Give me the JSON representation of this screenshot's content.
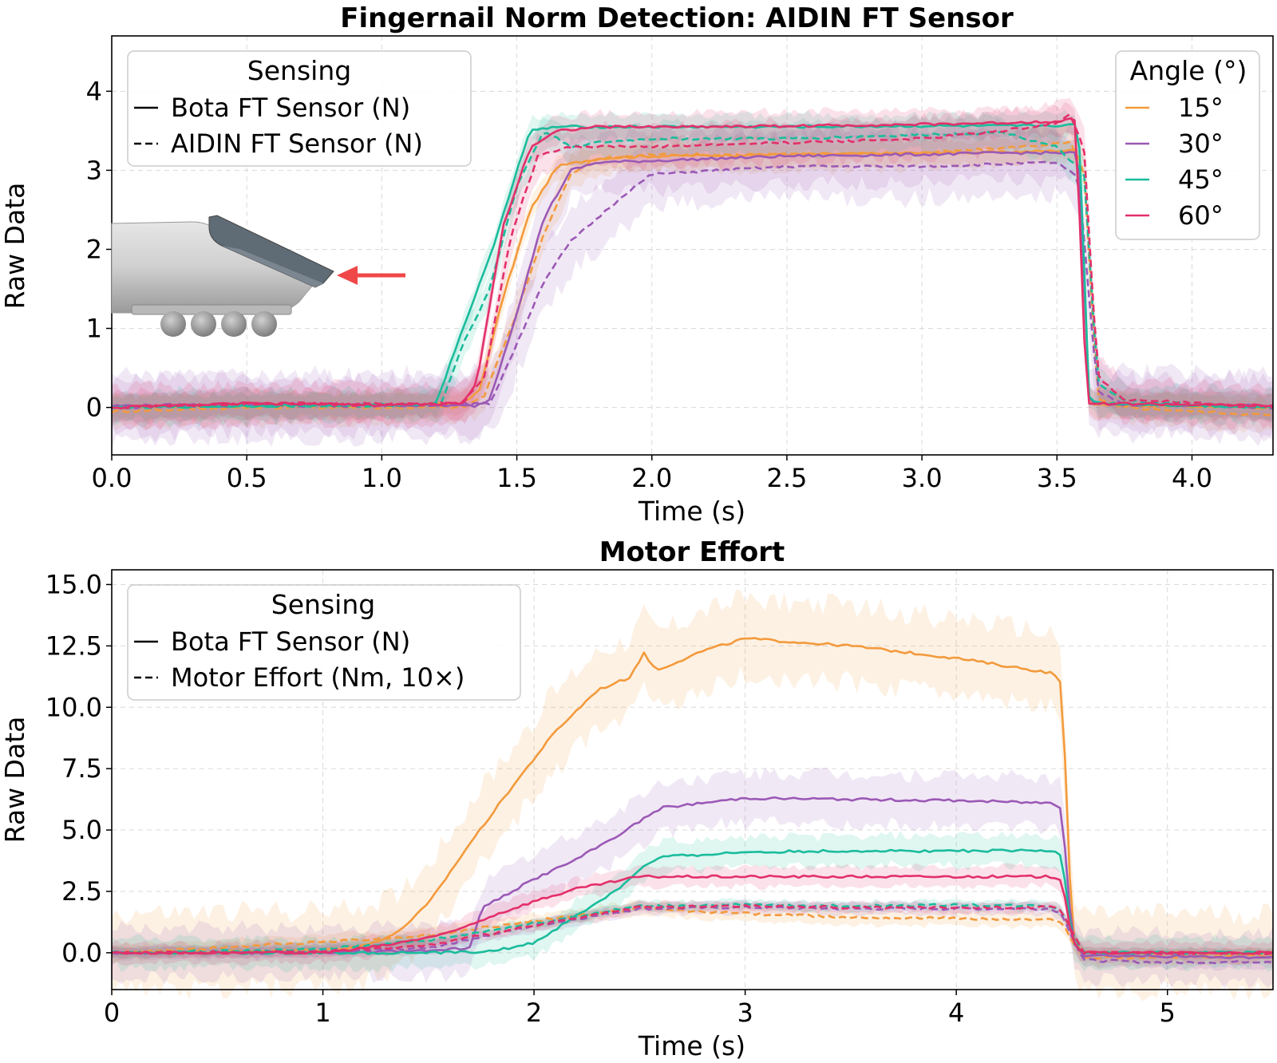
{
  "colors": {
    "15": "#f39a3c",
    "30": "#9b59b6",
    "45": "#1abc9c",
    "60": "#e3306a"
  },
  "chart_data": [
    {
      "id": "top",
      "type": "line",
      "title": "Fingernail Norm Detection: AIDIN FT Sensor",
      "xlabel": "Time (s)",
      "ylabel": "Raw Data",
      "xlim": [
        0,
        4.3
      ],
      "ylim": [
        -0.6,
        4.7
      ],
      "xticks": [
        0,
        0.5,
        1,
        1.5,
        2,
        2.5,
        3,
        3.5,
        4
      ],
      "xtick_labels": [
        "0.0",
        "0.5",
        "1.0",
        "1.5",
        "2.0",
        "2.5",
        "3.0",
        "3.5",
        "4.0"
      ],
      "yticks": [
        0,
        1,
        2,
        3,
        4
      ],
      "ytick_labels": [
        "0",
        "1",
        "2",
        "3",
        "4"
      ],
      "grid": true,
      "legend_sensing": {
        "title": "Sensing",
        "placement": "upper-left",
        "entries": [
          {
            "style": "solid",
            "label": "Bota FT Sensor (N)"
          },
          {
            "style": "dashed",
            "label": "AIDIN FT Sensor (N)"
          }
        ]
      },
      "legend_angle": {
        "title": "Angle (°)",
        "placement": "upper-right",
        "entries": [
          {
            "key": "15",
            "label": "15°"
          },
          {
            "key": "30",
            "label": "30°"
          },
          {
            "key": "45",
            "label": "45°"
          },
          {
            "key": "60",
            "label": "60°"
          }
        ]
      },
      "series": [
        {
          "angle": "15",
          "style": "solid",
          "x": [
            0,
            0.5,
            1.0,
            1.3,
            1.36,
            1.45,
            1.55,
            1.65,
            1.8,
            2.0,
            2.5,
            3.0,
            3.3,
            3.55,
            3.58,
            3.62,
            3.7,
            4.3
          ],
          "y": [
            0.0,
            0.03,
            0.02,
            0.05,
            0.2,
            1.4,
            2.5,
            3.05,
            3.15,
            3.18,
            3.2,
            3.22,
            3.23,
            3.25,
            3.25,
            0.05,
            0.03,
            0.0
          ],
          "band": 0.15
        },
        {
          "angle": "15",
          "style": "dashed",
          "x": [
            0,
            0.5,
            1.0,
            1.3,
            1.38,
            1.5,
            1.6,
            1.7,
            1.8,
            2.0,
            2.5,
            3.0,
            3.3,
            3.55,
            3.6,
            3.65,
            3.75,
            4.3
          ],
          "y": [
            -0.05,
            0.0,
            0.0,
            0.0,
            0.15,
            1.2,
            2.2,
            2.95,
            3.15,
            3.2,
            3.2,
            3.22,
            3.28,
            3.35,
            3.0,
            0.1,
            0.0,
            -0.1
          ],
          "band": 0.2
        },
        {
          "angle": "30",
          "style": "solid",
          "x": [
            0,
            0.5,
            1.0,
            1.35,
            1.4,
            1.5,
            1.6,
            1.7,
            1.8,
            2.0,
            2.5,
            3.0,
            3.3,
            3.55,
            3.58,
            3.62,
            3.7,
            4.3
          ],
          "y": [
            0.02,
            0.04,
            0.03,
            0.02,
            0.1,
            1.2,
            2.4,
            3.0,
            3.1,
            3.12,
            3.18,
            3.2,
            3.22,
            3.22,
            3.22,
            0.05,
            0.04,
            0.02
          ],
          "band": 0.35
        },
        {
          "angle": "30",
          "style": "dashed",
          "x": [
            0,
            0.5,
            1.0,
            1.4,
            1.5,
            1.6,
            1.7,
            1.8,
            1.9,
            2.0,
            2.5,
            3.0,
            3.3,
            3.5,
            3.58,
            3.65,
            3.75,
            4.3
          ],
          "y": [
            0.0,
            0.02,
            0.02,
            0.05,
            0.8,
            1.6,
            2.1,
            2.4,
            2.7,
            2.95,
            3.05,
            3.05,
            3.08,
            3.1,
            2.9,
            0.2,
            0.05,
            0.0
          ],
          "band": 0.4
        },
        {
          "angle": "45",
          "style": "solid",
          "x": [
            0,
            0.5,
            1.0,
            1.2,
            1.3,
            1.4,
            1.5,
            1.55,
            1.65,
            1.8,
            2.0,
            2.5,
            3.0,
            3.3,
            3.55,
            3.58,
            3.62,
            3.7,
            4.3
          ],
          "y": [
            0.0,
            0.02,
            0.03,
            0.05,
            1.0,
            1.9,
            3.0,
            3.5,
            3.55,
            3.55,
            3.55,
            3.55,
            3.56,
            3.56,
            3.57,
            3.57,
            0.08,
            0.05,
            0.0
          ],
          "band": 0.15
        },
        {
          "angle": "45",
          "style": "dashed",
          "x": [
            0,
            0.5,
            1.0,
            1.22,
            1.3,
            1.4,
            1.5,
            1.6,
            1.7,
            1.8,
            2.0,
            2.5,
            3.0,
            3.3,
            3.5,
            3.55,
            3.6,
            3.65,
            3.75,
            4.3
          ],
          "y": [
            0.0,
            0.02,
            0.02,
            0.05,
            0.8,
            1.5,
            2.8,
            3.5,
            3.3,
            3.35,
            3.4,
            3.4,
            3.45,
            3.48,
            3.3,
            3.1,
            3.0,
            0.3,
            0.08,
            0.0
          ],
          "band": 0.2
        },
        {
          "angle": "60",
          "style": "solid",
          "x": [
            0,
            0.5,
            1.0,
            1.3,
            1.35,
            1.45,
            1.55,
            1.65,
            1.8,
            2.0,
            2.5,
            3.0,
            3.3,
            3.5,
            3.57,
            3.61,
            3.7,
            4.3
          ],
          "y": [
            0.0,
            0.05,
            0.03,
            0.05,
            0.3,
            2.3,
            3.3,
            3.5,
            3.55,
            3.55,
            3.56,
            3.58,
            3.6,
            3.62,
            3.65,
            0.05,
            0.05,
            0.02
          ],
          "band": 0.18
        },
        {
          "angle": "60",
          "style": "dashed",
          "x": [
            0,
            0.5,
            1.0,
            1.3,
            1.38,
            1.48,
            1.58,
            1.7,
            2.0,
            2.5,
            3.0,
            3.3,
            3.5,
            3.55,
            3.6,
            3.65,
            3.75,
            4.3
          ],
          "y": [
            0.0,
            0.05,
            0.05,
            0.05,
            0.4,
            2.2,
            3.2,
            3.3,
            3.3,
            3.35,
            3.4,
            3.5,
            3.6,
            3.7,
            3.3,
            0.4,
            0.1,
            0.0
          ],
          "band": 0.25
        }
      ]
    },
    {
      "id": "bottom",
      "type": "line",
      "title": "Motor Effort",
      "xlabel": "Time (s)",
      "ylabel": "Raw Data",
      "xlim": [
        0,
        5.5
      ],
      "ylim": [
        -1.5,
        15.6
      ],
      "xticks": [
        0,
        1,
        2,
        3,
        4,
        5
      ],
      "xtick_labels": [
        "0",
        "1",
        "2",
        "3",
        "4",
        "5"
      ],
      "yticks": [
        0,
        2.5,
        5,
        7.5,
        10,
        12.5,
        15
      ],
      "ytick_labels": [
        "0.0",
        "2.5",
        "5.0",
        "7.5",
        "10.0",
        "12.5",
        "15.0"
      ],
      "grid": true,
      "legend_sensing": {
        "title": "Sensing",
        "placement": "upper-left",
        "entries": [
          {
            "style": "solid",
            "label": "Bota FT Sensor (N)"
          },
          {
            "style": "dashed",
            "label": "Motor Effort (Nm, 10×)"
          }
        ]
      },
      "series": [
        {
          "angle": "15",
          "style": "solid",
          "x": [
            0,
            1.0,
            1.2,
            1.35,
            1.5,
            1.7,
            1.9,
            2.1,
            2.3,
            2.45,
            2.52,
            2.58,
            2.8,
            3.0,
            3.5,
            4.0,
            4.45,
            4.5,
            4.55,
            4.6,
            5.5
          ],
          "y": [
            0.0,
            0.1,
            0.3,
            0.8,
            2.0,
            4.5,
            6.8,
            9.0,
            10.7,
            11.2,
            12.2,
            11.5,
            12.3,
            12.8,
            12.5,
            12.0,
            11.4,
            11.0,
            0.5,
            0.0,
            0.0
          ],
          "band_lo": 1.5,
          "band_hi": 1.6
        },
        {
          "angle": "15",
          "style": "dashed",
          "x": [
            0,
            0.5,
            1.0,
            1.5,
            2.0,
            2.5,
            3.0,
            3.5,
            4.0,
            4.45,
            4.5,
            4.6,
            5.0,
            5.5
          ],
          "y": [
            0.0,
            0.2,
            0.45,
            0.7,
            1.3,
            1.8,
            1.6,
            1.45,
            1.4,
            1.35,
            1.2,
            -0.2,
            -0.2,
            -0.1
          ],
          "band_lo": 0.3,
          "band_hi": 0.3
        },
        {
          "angle": "30",
          "style": "solid",
          "x": [
            0,
            1.0,
            1.5,
            1.7,
            1.75,
            2.0,
            2.2,
            2.4,
            2.6,
            3.0,
            3.5,
            4.0,
            4.45,
            4.5,
            4.55,
            4.6,
            5.5
          ],
          "y": [
            0.0,
            0.0,
            0.1,
            0.2,
            1.8,
            3.0,
            3.8,
            4.8,
            5.9,
            6.3,
            6.25,
            6.2,
            6.1,
            5.9,
            0.5,
            -0.1,
            -0.2
          ],
          "band_lo": 1.0,
          "band_hi": 1.0
        },
        {
          "angle": "30",
          "style": "dashed",
          "x": [
            0,
            1.0,
            1.5,
            2.0,
            2.5,
            3.0,
            3.5,
            4.0,
            4.45,
            4.5,
            4.6,
            5.0,
            5.5
          ],
          "y": [
            0.0,
            0.05,
            0.2,
            1.1,
            1.8,
            1.85,
            1.8,
            1.8,
            1.8,
            1.6,
            -0.3,
            -0.4,
            -0.35
          ],
          "band_lo": 0.25,
          "band_hi": 0.25
        },
        {
          "angle": "45",
          "style": "solid",
          "x": [
            0,
            1.0,
            1.5,
            1.8,
            2.0,
            2.2,
            2.4,
            2.5,
            2.6,
            3.0,
            3.5,
            4.0,
            4.45,
            4.5,
            4.55,
            4.6,
            5.5
          ],
          "y": [
            0.0,
            0.0,
            0.0,
            0.05,
            0.4,
            1.5,
            2.6,
            3.4,
            3.9,
            4.1,
            4.15,
            4.15,
            4.15,
            4.0,
            0.5,
            0.0,
            0.0
          ],
          "band_lo": 0.6,
          "band_hi": 0.6
        },
        {
          "angle": "45",
          "style": "dashed",
          "x": [
            0,
            0.8,
            1.0,
            1.5,
            2.0,
            2.5,
            3.0,
            3.5,
            4.0,
            4.45,
            4.5,
            4.6,
            5.5
          ],
          "y": [
            0.0,
            0.1,
            0.15,
            0.5,
            1.2,
            1.9,
            1.95,
            1.9,
            1.95,
            1.9,
            1.7,
            0.0,
            0.0
          ],
          "band_lo": 0.2,
          "band_hi": 0.2
        },
        {
          "angle": "60",
          "style": "solid",
          "x": [
            0,
            1.0,
            1.3,
            1.6,
            1.8,
            2.0,
            2.2,
            2.5,
            3.0,
            3.5,
            4.0,
            4.45,
            4.5,
            4.55,
            4.6,
            5.5
          ],
          "y": [
            0.0,
            0.0,
            0.3,
            0.8,
            1.5,
            2.1,
            2.6,
            3.1,
            3.1,
            3.1,
            3.1,
            3.1,
            3.0,
            0.5,
            0.0,
            0.0
          ],
          "band_lo": 0.4,
          "band_hi": 0.4
        },
        {
          "angle": "60",
          "style": "dashed",
          "x": [
            0,
            1.0,
            1.5,
            2.0,
            2.5,
            3.0,
            3.5,
            4.0,
            4.45,
            4.5,
            4.6,
            5.5
          ],
          "y": [
            0.0,
            0.05,
            0.3,
            1.1,
            1.85,
            1.9,
            1.85,
            1.85,
            1.85,
            1.7,
            0.0,
            -0.05
          ],
          "band_lo": 0.2,
          "band_hi": 0.2
        }
      ]
    }
  ]
}
